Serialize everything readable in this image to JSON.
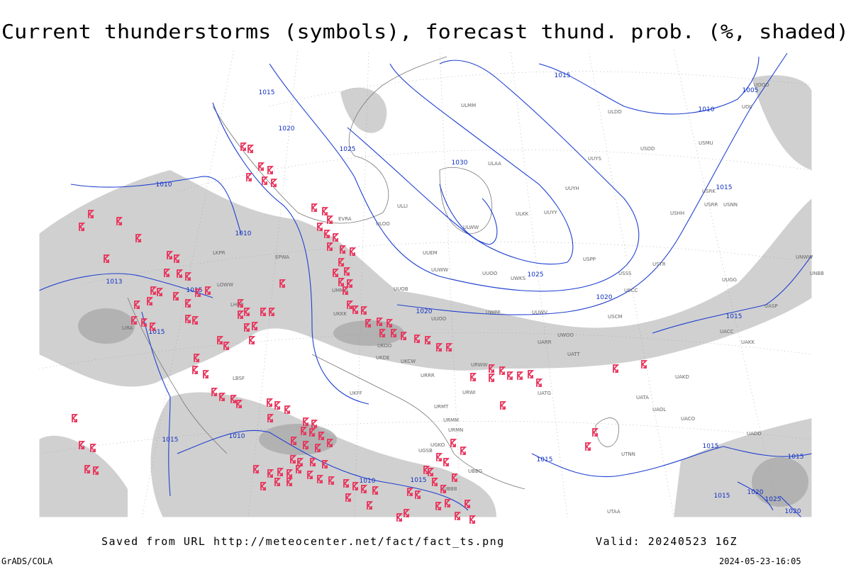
{
  "title": "Current thunderstorms (symbols), forecast thund. prob. (%, shaded)",
  "footer": {
    "saved": "Saved from URL http://meteocenter.net/fact/fact_ts.png",
    "valid": "Valid: 20240523 16Z",
    "credit": "GrADS/COLA",
    "timestamp": "2024-05-23-16:05"
  },
  "isobar_labels": [
    "1015",
    "1020",
    "1025",
    "1030",
    "1015",
    "1005",
    "1010",
    "1010",
    "1010",
    "1013",
    "1015",
    "1015",
    "1020",
    "1025",
    "1020",
    "1015",
    "1015",
    "1015",
    "1010",
    "1010",
    "1015",
    "1015",
    "1015",
    "1015",
    "1020",
    "1025",
    "1020",
    "1015"
  ],
  "stations": [
    "ULLI",
    "ULOO",
    "UUEM",
    "UUWW",
    "UUOO",
    "UWKS",
    "UUYY",
    "ULKK",
    "ULWW",
    "UUYH",
    "UUYS",
    "ULAA",
    "UWPP",
    "UUOO",
    "UUOB",
    "UMMG",
    "UKKK",
    "UKOO",
    "UKDE",
    "UKCW",
    "URRR",
    "URWW",
    "URWI",
    "UATG",
    "UARR",
    "UATT",
    "UWOO",
    "UACC",
    "UAKK",
    "UAKD",
    "UATA",
    "UAOL",
    "UACO",
    "UADD",
    "UTNN",
    "UTAA",
    "USSS",
    "USCC",
    "USCM",
    "USPP",
    "USTR",
    "UUWV",
    "EVRA",
    "EPWA",
    "LKPR",
    "LOWW",
    "LHBP",
    "LIRA",
    "LBSF",
    "UKFF",
    "URMT",
    "URMM",
    "URMN",
    "UGKO",
    "UGSB",
    "UBBB",
    "UBBG",
    "ULMM",
    "USRR",
    "USRK",
    "USNN",
    "UOOO",
    "UOII",
    "ULDD",
    "USDD",
    "USMU",
    "USHH",
    "UUGG",
    "UNBB",
    "UNWW",
    "UASP"
  ]
}
